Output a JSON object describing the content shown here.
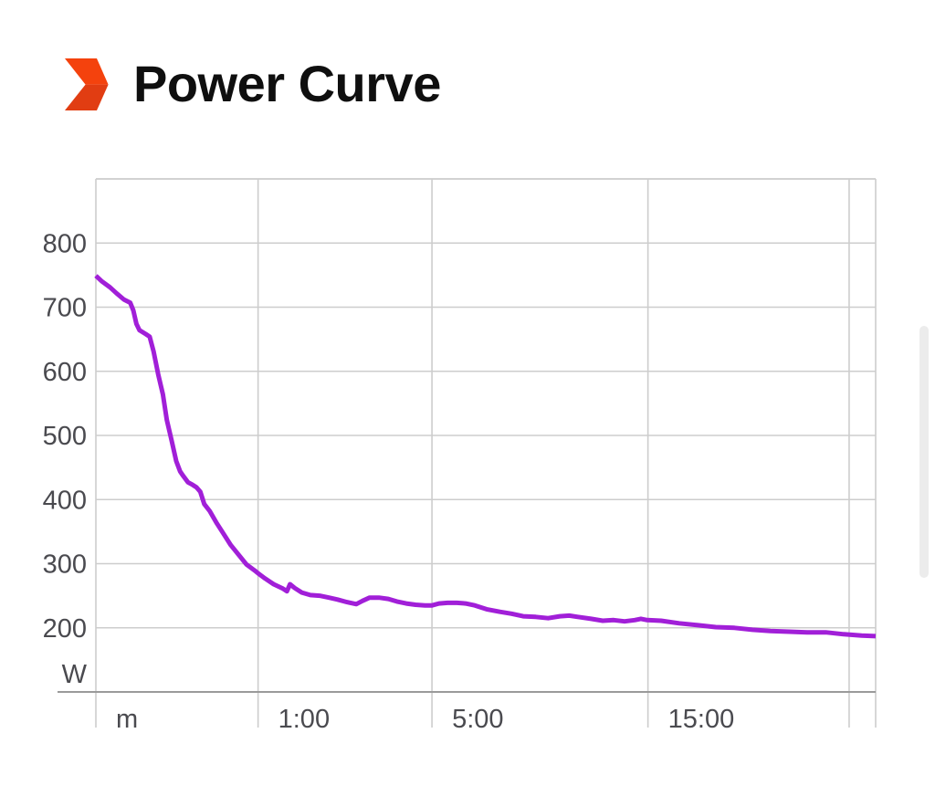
{
  "header": {
    "title": "Power Curve",
    "icon": {
      "name": "chevron-logo",
      "color_top": "#f4420d",
      "color_bottom": "#e13d12"
    }
  },
  "chart_data": {
    "type": "line",
    "title": "Power Curve",
    "x_axis_type": "duration (non-linear power-curve scale)",
    "y_unit": "W",
    "y_ticks": [
      800,
      700,
      600,
      500,
      400,
      300,
      200
    ],
    "y_range": [
      100,
      900
    ],
    "x_ticks": [
      {
        "label": "m",
        "pos": 0.0
      },
      {
        "label": "1:00",
        "pos": 0.208
      },
      {
        "label": "5:00",
        "pos": 0.431
      },
      {
        "label": "15:00",
        "pos": 0.708
      }
    ],
    "v_gridlines": [
      0.0,
      0.208,
      0.431,
      0.708,
      0.966,
      1.0
    ],
    "grid": true,
    "legend": "none",
    "line_color": "#a11fd8",
    "grid_color": "#cdcdcd",
    "axis_color": "#9a9a9a",
    "label_color": "#4a4a4f",
    "points": [
      [
        0.0,
        749
      ],
      [
        0.008,
        740
      ],
      [
        0.018,
        731
      ],
      [
        0.027,
        721
      ],
      [
        0.036,
        712
      ],
      [
        0.044,
        707
      ],
      [
        0.048,
        695
      ],
      [
        0.052,
        674
      ],
      [
        0.056,
        664
      ],
      [
        0.064,
        658
      ],
      [
        0.069,
        654
      ],
      [
        0.074,
        631
      ],
      [
        0.08,
        595
      ],
      [
        0.086,
        564
      ],
      [
        0.091,
        524
      ],
      [
        0.097,
        493
      ],
      [
        0.103,
        460
      ],
      [
        0.108,
        444
      ],
      [
        0.112,
        437
      ],
      [
        0.118,
        427
      ],
      [
        0.124,
        423
      ],
      [
        0.129,
        419
      ],
      [
        0.134,
        412
      ],
      [
        0.139,
        393
      ],
      [
        0.146,
        382
      ],
      [
        0.155,
        363
      ],
      [
        0.164,
        346
      ],
      [
        0.173,
        329
      ],
      [
        0.183,
        314
      ],
      [
        0.193,
        299
      ],
      [
        0.205,
        288
      ],
      [
        0.208,
        285
      ],
      [
        0.217,
        277
      ],
      [
        0.228,
        268
      ],
      [
        0.24,
        261
      ],
      [
        0.245,
        257
      ],
      [
        0.249,
        268
      ],
      [
        0.255,
        262
      ],
      [
        0.264,
        255
      ],
      [
        0.275,
        251
      ],
      [
        0.287,
        250
      ],
      [
        0.299,
        247
      ],
      [
        0.31,
        244
      ],
      [
        0.322,
        240
      ],
      [
        0.334,
        237
      ],
      [
        0.342,
        242
      ],
      [
        0.351,
        247
      ],
      [
        0.363,
        247
      ],
      [
        0.375,
        245
      ],
      [
        0.386,
        241
      ],
      [
        0.398,
        238
      ],
      [
        0.41,
        236
      ],
      [
        0.422,
        235
      ],
      [
        0.431,
        235
      ],
      [
        0.44,
        238
      ],
      [
        0.451,
        239
      ],
      [
        0.463,
        239
      ],
      [
        0.474,
        238
      ],
      [
        0.486,
        235
      ],
      [
        0.501,
        229
      ],
      [
        0.518,
        225
      ],
      [
        0.533,
        222
      ],
      [
        0.548,
        218
      ],
      [
        0.564,
        217
      ],
      [
        0.58,
        215
      ],
      [
        0.595,
        218
      ],
      [
        0.607,
        219
      ],
      [
        0.618,
        217
      ],
      [
        0.635,
        214
      ],
      [
        0.65,
        211
      ],
      [
        0.664,
        212
      ],
      [
        0.678,
        210
      ],
      [
        0.691,
        212
      ],
      [
        0.699,
        214
      ],
      [
        0.707,
        212
      ],
      [
        0.725,
        211
      ],
      [
        0.748,
        207
      ],
      [
        0.772,
        204
      ],
      [
        0.795,
        201
      ],
      [
        0.819,
        200
      ],
      [
        0.842,
        197
      ],
      [
        0.865,
        195
      ],
      [
        0.889,
        194
      ],
      [
        0.912,
        193
      ],
      [
        0.936,
        193
      ],
      [
        0.959,
        190
      ],
      [
        0.982,
        188
      ],
      [
        1.0,
        187
      ]
    ]
  }
}
